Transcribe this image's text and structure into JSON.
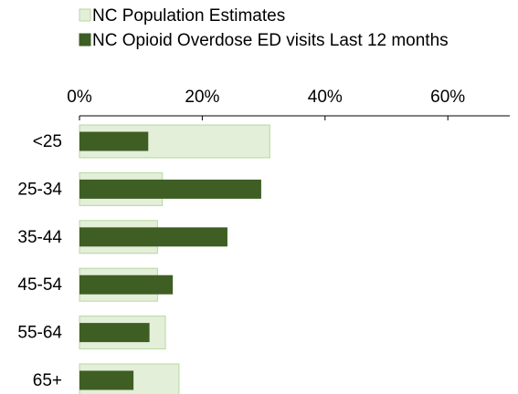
{
  "chart_data": {
    "type": "bar",
    "orientation": "horizontal",
    "categories": [
      "<25",
      "25-34",
      "35-44",
      "45-54",
      "55-64",
      "65+"
    ],
    "series": [
      {
        "name": "NC Population Estimates",
        "color": "#e3efd9",
        "border": "#b7d7a0",
        "values": [
          31,
          13.5,
          12.7,
          12.7,
          14,
          16.2
        ]
      },
      {
        "name": "NC Opioid Overdose ED visits Last 12 months",
        "color": "#3e5e23",
        "values": [
          11.2,
          29.6,
          24.1,
          15.2,
          11.4,
          8.8
        ]
      }
    ],
    "xlim": [
      0,
      70
    ],
    "x_ticks": [
      "0%",
      "20%",
      "40%",
      "60%"
    ],
    "x_tick_values": [
      0,
      20,
      40,
      60
    ],
    "axis_position": "top",
    "legend_position": "top-left",
    "grid": false
  }
}
